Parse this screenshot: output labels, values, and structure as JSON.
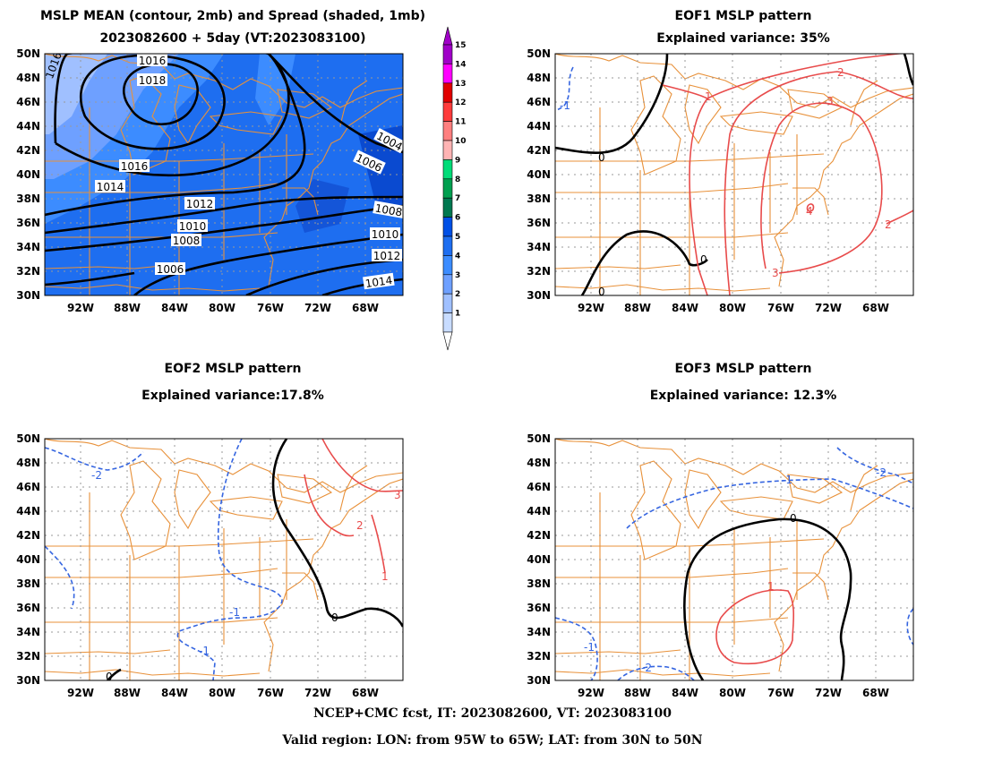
{
  "panels": {
    "mean": {
      "title_line1": "MSLP MEAN (contour, 2mb) and Spread (shaded, 1mb)",
      "title_line2": "2023082600 + 5day (VT:2023083100)",
      "contour_labels": [
        "1016",
        "1018",
        "1016",
        "1014",
        "1012",
        "1010",
        "1008",
        "1006",
        "1004",
        "1006",
        "1008",
        "1010",
        "1012",
        "1014",
        "1016"
      ]
    },
    "eof1": {
      "title_line1": "EOF1 MSLP pattern",
      "title_line2": "Explained variance: 35%",
      "contour_labels": [
        "-1",
        "0",
        "1",
        "2",
        "3",
        "4",
        "2",
        "3",
        "0",
        "0"
      ]
    },
    "eof2": {
      "title_line1": "EOF2 MSLP pattern",
      "title_line2": "Explained variance:17.8%",
      "contour_labels": [
        "-2",
        "-1",
        "-1",
        "-2",
        "0",
        "3",
        "2",
        "1",
        "0"
      ]
    },
    "eof3": {
      "title_line1": "EOF3 MSLP pattern",
      "title_line2": "Explained variance: 12.3%",
      "contour_labels": [
        "-1",
        "-2",
        "0",
        "1",
        "-1",
        "-2",
        "-1"
      ]
    }
  },
  "axes": {
    "lat_labels": [
      "50N",
      "48N",
      "46N",
      "44N",
      "42N",
      "40N",
      "38N",
      "36N",
      "34N",
      "32N",
      "30N"
    ],
    "lon_labels": [
      "92W",
      "88W",
      "84W",
      "80W",
      "76W",
      "72W",
      "68W"
    ]
  },
  "colorbar": {
    "levels": [
      "15",
      "14",
      "13",
      "12",
      "11",
      "10",
      "9",
      "8",
      "7",
      "6",
      "5",
      "4",
      "3",
      "2",
      "1"
    ],
    "colors": [
      "#a000c8",
      "#ff00ff",
      "#e10000",
      "#ff3c3c",
      "#ff7f7f",
      "#ffb4b4",
      "#00dc78",
      "#00a050",
      "#007850",
      "#0050e6",
      "#1e6ef0",
      "#3c8cff",
      "#6ea0ff",
      "#a0c0ff",
      "#c8dcff"
    ]
  },
  "colors": {
    "coast": "#e8913a",
    "positive_contour": "#e84b4b",
    "negative_contour": "#3565e0",
    "zero_contour": "#000000",
    "grid": "#999999"
  },
  "footer": {
    "line1": "NCEP+CMC fcst, IT: 2023082600, VT: 2023083100",
    "line2": "Valid region: LON: from 95W to 65W; LAT: from 30N to 50N"
  }
}
